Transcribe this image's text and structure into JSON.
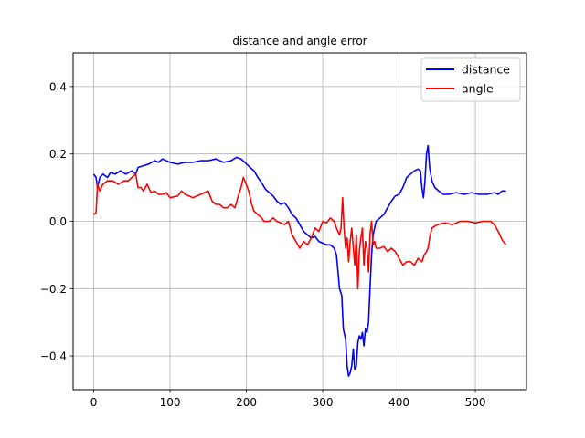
{
  "chart_data": {
    "type": "line",
    "title": "distance and angle error",
    "xlabel": "",
    "ylabel": "",
    "xlim": [
      -27,
      567
    ],
    "ylim": [
      -0.5,
      0.5
    ],
    "xticks": [
      0,
      100,
      200,
      300,
      400,
      500
    ],
    "yticks": [
      -0.4,
      -0.2,
      0.0,
      0.2,
      0.4
    ],
    "xtick_labels": [
      "0",
      "100",
      "200",
      "300",
      "400",
      "500"
    ],
    "ytick_labels": [
      "−0.4",
      "−0.2",
      "0.0",
      "0.2",
      "0.4"
    ],
    "grid": true,
    "legend_position": "top-right",
    "series": [
      {
        "name": "distance",
        "color": "#0000ff",
        "points": [
          [
            0,
            0.14
          ],
          [
            3,
            0.13
          ],
          [
            5,
            0.1
          ],
          [
            8,
            0.13
          ],
          [
            12,
            0.14
          ],
          [
            18,
            0.13
          ],
          [
            22,
            0.145
          ],
          [
            28,
            0.14
          ],
          [
            35,
            0.15
          ],
          [
            42,
            0.14
          ],
          [
            50,
            0.15
          ],
          [
            55,
            0.14
          ],
          [
            58,
            0.16
          ],
          [
            65,
            0.165
          ],
          [
            72,
            0.17
          ],
          [
            80,
            0.18
          ],
          [
            85,
            0.175
          ],
          [
            90,
            0.185
          ],
          [
            95,
            0.18
          ],
          [
            100,
            0.175
          ],
          [
            110,
            0.17
          ],
          [
            120,
            0.175
          ],
          [
            130,
            0.175
          ],
          [
            140,
            0.18
          ],
          [
            150,
            0.18
          ],
          [
            160,
            0.185
          ],
          [
            170,
            0.175
          ],
          [
            180,
            0.18
          ],
          [
            187,
            0.19
          ],
          [
            193,
            0.185
          ],
          [
            198,
            0.175
          ],
          [
            205,
            0.16
          ],
          [
            210,
            0.15
          ],
          [
            215,
            0.13
          ],
          [
            220,
            0.115
          ],
          [
            225,
            0.095
          ],
          [
            230,
            0.085
          ],
          [
            235,
            0.075
          ],
          [
            240,
            0.06
          ],
          [
            245,
            0.05
          ],
          [
            250,
            0.055
          ],
          [
            255,
            0.04
          ],
          [
            260,
            0.02
          ],
          [
            265,
            0.01
          ],
          [
            270,
            -0.01
          ],
          [
            275,
            -0.03
          ],
          [
            280,
            -0.04
          ],
          [
            285,
            -0.05
          ],
          [
            290,
            -0.045
          ],
          [
            295,
            -0.06
          ],
          [
            300,
            -0.065
          ],
          [
            305,
            -0.07
          ],
          [
            310,
            -0.07
          ],
          [
            315,
            -0.08
          ],
          [
            318,
            -0.1
          ],
          [
            320,
            -0.15
          ],
          [
            322,
            -0.2
          ],
          [
            325,
            -0.22
          ],
          [
            327,
            -0.32
          ],
          [
            330,
            -0.35
          ],
          [
            332,
            -0.43
          ],
          [
            334,
            -0.46
          ],
          [
            336,
            -0.45
          ],
          [
            338,
            -0.43
          ],
          [
            340,
            -0.38
          ],
          [
            342,
            -0.44
          ],
          [
            344,
            -0.43
          ],
          [
            346,
            -0.36
          ],
          [
            348,
            -0.34
          ],
          [
            350,
            -0.35
          ],
          [
            352,
            -0.33
          ],
          [
            354,
            -0.37
          ],
          [
            356,
            -0.32
          ],
          [
            358,
            -0.33
          ],
          [
            360,
            -0.3
          ],
          [
            362,
            -0.2
          ],
          [
            364,
            -0.1
          ],
          [
            366,
            -0.04
          ],
          [
            368,
            -0.02
          ],
          [
            370,
            0.0
          ],
          [
            375,
            0.01
          ],
          [
            380,
            0.02
          ],
          [
            385,
            0.04
          ],
          [
            390,
            0.06
          ],
          [
            395,
            0.075
          ],
          [
            400,
            0.08
          ],
          [
            405,
            0.1
          ],
          [
            410,
            0.13
          ],
          [
            415,
            0.14
          ],
          [
            420,
            0.15
          ],
          [
            425,
            0.155
          ],
          [
            428,
            0.15
          ],
          [
            430,
            0.1
          ],
          [
            432,
            0.07
          ],
          [
            434,
            0.12
          ],
          [
            436,
            0.2
          ],
          [
            438,
            0.225
          ],
          [
            440,
            0.16
          ],
          [
            443,
            0.12
          ],
          [
            447,
            0.1
          ],
          [
            452,
            0.09
          ],
          [
            458,
            0.08
          ],
          [
            465,
            0.08
          ],
          [
            475,
            0.085
          ],
          [
            485,
            0.08
          ],
          [
            495,
            0.085
          ],
          [
            505,
            0.08
          ],
          [
            515,
            0.08
          ],
          [
            525,
            0.085
          ],
          [
            530,
            0.08
          ],
          [
            535,
            0.09
          ],
          [
            540,
            0.09
          ]
        ]
      },
      {
        "name": "angle",
        "color": "#ff0000",
        "points": [
          [
            0,
            0.02
          ],
          [
            3,
            0.025
          ],
          [
            5,
            0.11
          ],
          [
            8,
            0.09
          ],
          [
            12,
            0.11
          ],
          [
            18,
            0.12
          ],
          [
            25,
            0.12
          ],
          [
            32,
            0.11
          ],
          [
            40,
            0.12
          ],
          [
            45,
            0.12
          ],
          [
            50,
            0.13
          ],
          [
            55,
            0.14
          ],
          [
            58,
            0.1
          ],
          [
            62,
            0.1
          ],
          [
            65,
            0.09
          ],
          [
            70,
            0.11
          ],
          [
            75,
            0.085
          ],
          [
            80,
            0.09
          ],
          [
            85,
            0.08
          ],
          [
            90,
            0.08
          ],
          [
            95,
            0.085
          ],
          [
            100,
            0.07
          ],
          [
            110,
            0.075
          ],
          [
            115,
            0.09
          ],
          [
            120,
            0.08
          ],
          [
            130,
            0.07
          ],
          [
            140,
            0.08
          ],
          [
            145,
            0.085
          ],
          [
            150,
            0.09
          ],
          [
            155,
            0.06
          ],
          [
            160,
            0.05
          ],
          [
            165,
            0.05
          ],
          [
            170,
            0.04
          ],
          [
            175,
            0.04
          ],
          [
            180,
            0.05
          ],
          [
            185,
            0.04
          ],
          [
            190,
            0.08
          ],
          [
            193,
            0.1
          ],
          [
            196,
            0.13
          ],
          [
            198,
            0.12
          ],
          [
            203,
            0.09
          ],
          [
            207,
            0.05
          ],
          [
            210,
            0.03
          ],
          [
            215,
            0.02
          ],
          [
            220,
            0.01
          ],
          [
            223,
            0.0
          ],
          [
            230,
            0.0
          ],
          [
            235,
            0.01
          ],
          [
            240,
            0.0
          ],
          [
            245,
            -0.005
          ],
          [
            250,
            -0.01
          ],
          [
            255,
            0.0
          ],
          [
            260,
            -0.04
          ],
          [
            265,
            -0.06
          ],
          [
            270,
            -0.08
          ],
          [
            275,
            -0.06
          ],
          [
            280,
            -0.07
          ],
          [
            285,
            -0.05
          ],
          [
            290,
            -0.02
          ],
          [
            295,
            -0.03
          ],
          [
            300,
            0.0
          ],
          [
            305,
            -0.005
          ],
          [
            310,
            0.01
          ],
          [
            315,
            0.0
          ],
          [
            318,
            -0.02
          ],
          [
            322,
            -0.04
          ],
          [
            324,
            -0.02
          ],
          [
            326,
            0.07
          ],
          [
            328,
            -0.02
          ],
          [
            330,
            -0.08
          ],
          [
            332,
            -0.05
          ],
          [
            334,
            -0.12
          ],
          [
            336,
            -0.06
          ],
          [
            338,
            -0.02
          ],
          [
            340,
            -0.08
          ],
          [
            342,
            -0.13
          ],
          [
            344,
            -0.04
          ],
          [
            346,
            -0.2
          ],
          [
            348,
            -0.09
          ],
          [
            350,
            -0.05
          ],
          [
            352,
            -0.02
          ],
          [
            354,
            -0.13
          ],
          [
            356,
            -0.06
          ],
          [
            358,
            -0.08
          ],
          [
            360,
            -0.15
          ],
          [
            362,
            -0.04
          ],
          [
            364,
            0.0
          ],
          [
            366,
            -0.07
          ],
          [
            368,
            -0.06
          ],
          [
            370,
            -0.08
          ],
          [
            375,
            -0.08
          ],
          [
            380,
            -0.075
          ],
          [
            385,
            -0.09
          ],
          [
            390,
            -0.08
          ],
          [
            395,
            -0.09
          ],
          [
            400,
            -0.11
          ],
          [
            405,
            -0.13
          ],
          [
            410,
            -0.12
          ],
          [
            415,
            -0.12
          ],
          [
            420,
            -0.13
          ],
          [
            425,
            -0.11
          ],
          [
            430,
            -0.12
          ],
          [
            433,
            -0.1
          ],
          [
            436,
            -0.09
          ],
          [
            438,
            -0.08
          ],
          [
            440,
            -0.05
          ],
          [
            443,
            -0.02
          ],
          [
            450,
            -0.01
          ],
          [
            460,
            -0.005
          ],
          [
            470,
            -0.01
          ],
          [
            480,
            0.0
          ],
          [
            490,
            0.0
          ],
          [
            500,
            -0.005
          ],
          [
            510,
            0.0
          ],
          [
            520,
            0.0
          ],
          [
            525,
            -0.01
          ],
          [
            530,
            -0.03
          ],
          [
            535,
            -0.055
          ],
          [
            540,
            -0.07
          ]
        ]
      }
    ]
  }
}
